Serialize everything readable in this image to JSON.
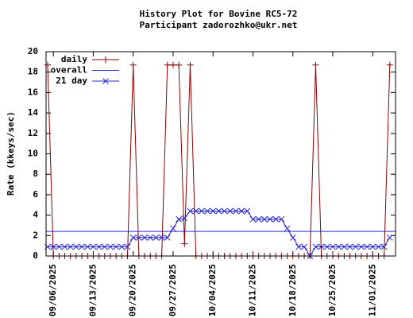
{
  "chart_data": {
    "type": "line",
    "title": "History Plot for Bovine RC5-72",
    "subtitle": "Participant zadorozhko@ukr.net",
    "y_label": "Rate (kkeys/sec)",
    "x": [
      "09/05/2025",
      "09/06/2025",
      "09/07/2025",
      "09/08/2025",
      "09/09/2025",
      "09/10/2025",
      "09/11/2025",
      "09/12/2025",
      "09/13/2025",
      "09/14/2025",
      "09/15/2025",
      "09/16/2025",
      "09/17/2025",
      "09/18/2025",
      "09/19/2025",
      "09/20/2025",
      "09/21/2025",
      "09/22/2025",
      "09/23/2025",
      "09/24/2025",
      "09/25/2025",
      "09/26/2025",
      "09/27/2025",
      "09/28/2025",
      "09/29/2025",
      "09/30/2025",
      "10/01/2025",
      "10/02/2025",
      "10/03/2025",
      "10/04/2025",
      "10/05/2025",
      "10/06/2025",
      "10/07/2025",
      "10/08/2025",
      "10/09/2025",
      "10/10/2025",
      "10/11/2025",
      "10/12/2025",
      "10/13/2025",
      "10/14/2025",
      "10/15/2025",
      "10/16/2025",
      "10/17/2025",
      "10/18/2025",
      "10/19/2025",
      "10/20/2025",
      "10/21/2025",
      "10/22/2025",
      "10/23/2025",
      "10/24/2025",
      "10/25/2025",
      "10/26/2025",
      "10/27/2025",
      "10/28/2025",
      "10/29/2025",
      "10/30/2025",
      "10/31/2025",
      "11/01/2025",
      "11/02/2025",
      "11/03/2025",
      "11/04/2025"
    ],
    "series": [
      {
        "name": "daily",
        "color": "#8b0000",
        "marker": "plus",
        "values": [
          18.7,
          0,
          0,
          0,
          0,
          0,
          0,
          0,
          0,
          0,
          0,
          0,
          0,
          0,
          0,
          18.7,
          0,
          0,
          0,
          0,
          0,
          18.7,
          18.7,
          18.7,
          1.2,
          18.7,
          0,
          0,
          0,
          0,
          0,
          0,
          0,
          0,
          0,
          0,
          0,
          0,
          0,
          0,
          0,
          0,
          0,
          0,
          0,
          0,
          0,
          18.7,
          0,
          0,
          0,
          0,
          0,
          0,
          0,
          0,
          0,
          0,
          0,
          0,
          18.7
        ]
      },
      {
        "name": "overall",
        "color": "#2a2ad0",
        "value": 2.4
      },
      {
        "name": "21 day",
        "color": "#2a2ad0",
        "marker": "cross",
        "values": [
          0.9,
          0.9,
          0.9,
          0.9,
          0.9,
          0.9,
          0.9,
          0.9,
          0.9,
          0.9,
          0.9,
          0.9,
          0.9,
          0.9,
          0.9,
          1.8,
          1.8,
          1.8,
          1.8,
          1.8,
          1.8,
          1.8,
          2.7,
          3.6,
          3.7,
          4.4,
          4.4,
          4.4,
          4.4,
          4.4,
          4.4,
          4.4,
          4.4,
          4.4,
          4.4,
          4.4,
          3.6,
          3.6,
          3.6,
          3.6,
          3.6,
          3.6,
          2.7,
          1.8,
          0.9,
          0.9,
          0,
          0.9,
          0.9,
          0.9,
          0.9,
          0.9,
          0.9,
          0.9,
          0.9,
          0.9,
          0.9,
          0.9,
          0.9,
          0.9,
          1.8
        ]
      }
    ],
    "xlim": [
      "09/05/2025",
      "11/05/2025"
    ],
    "xticks": [
      "09/06/2025",
      "09/13/2025",
      "09/20/2025",
      "09/27/2025",
      "10/04/2025",
      "10/11/2025",
      "10/18/2025",
      "10/25/2025",
      "11/01/2025"
    ],
    "ylim": [
      0,
      20
    ],
    "yticks": [
      0,
      2,
      4,
      6,
      8,
      10,
      12,
      14,
      16,
      18,
      20
    ],
    "grid": false,
    "legend": "top-left"
  }
}
